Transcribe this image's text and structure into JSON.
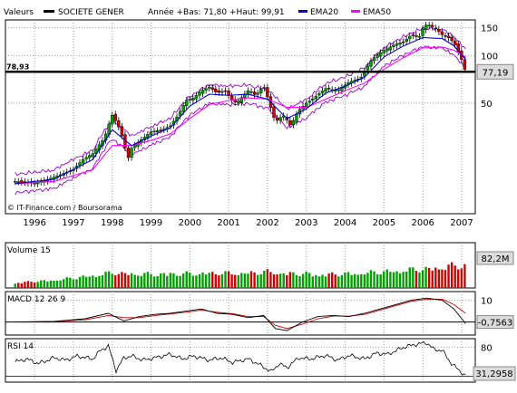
{
  "header": {
    "valeurs_label": "Valeurs",
    "security_name": "SOCIETE GENER",
    "period_info": "Année +Bas: 71,80 +Haut: 99,91",
    "legend": [
      {
        "name": "EMA20",
        "color": "#0000cc"
      },
      {
        "name": "EMA50",
        "color": "#ff00ff"
      }
    ]
  },
  "watermark": "© IT-Finance.com / Boursorama",
  "colors": {
    "background": "#ffffff",
    "grid": "#9e9e9e",
    "up": "#00a000",
    "down": "#d00000",
    "ema20": "#0000cc",
    "ema50": "#ff00ff",
    "bollinger": "#9900cc",
    "badge": "#dcdcdc"
  },
  "chart_data": [
    {
      "type": "candlestick",
      "title": "SOCIETE GENER",
      "x_tick_labels": [
        "1996",
        "1997",
        "1998",
        "1999",
        "2000",
        "2001",
        "2002",
        "2003",
        "2004",
        "2005",
        "2006",
        "2007"
      ],
      "y_ticks": [
        50,
        100,
        150
      ],
      "ylim": [
        10,
        168
      ],
      "xlim": [
        1995.75,
        2007.85
      ],
      "grid": true,
      "scale": "log",
      "legend_placement": "top",
      "support_line": {
        "value": 78.93,
        "label": "78,93"
      },
      "last_value_label": "77,19",
      "series": [
        {
          "name": "close",
          "x": [
            1996.0,
            1996.5,
            1997.0,
            1997.5,
            1997.75,
            1998.0,
            1998.3,
            1998.5,
            1998.7,
            1998.9,
            1999.0,
            1999.3,
            1999.5,
            1999.8,
            2000.0,
            2000.2,
            2000.4,
            2000.6,
            2000.8,
            2001.0,
            2001.2,
            2001.4,
            2001.6,
            2001.7,
            2002.0,
            2002.2,
            2002.4,
            2002.6,
            2002.7,
            2002.9,
            2003.1,
            2003.3,
            2003.5,
            2003.7,
            2004.0,
            2004.3,
            2004.6,
            2004.9,
            2005.0,
            2005.2,
            2005.5,
            2005.8,
            2006.0,
            2006.2,
            2006.4,
            2006.5,
            2006.6,
            2006.8,
            2007.0,
            2007.2,
            2007.35,
            2007.45,
            2007.55,
            2007.6
          ],
          "y": [
            16,
            15.5,
            17,
            19,
            22,
            24,
            30,
            42,
            34,
            22,
            26,
            30,
            33,
            34,
            36,
            42,
            52,
            54,
            60,
            63,
            58,
            60,
            52,
            50,
            60,
            56,
            64,
            45,
            38,
            42,
            36,
            45,
            50,
            54,
            62,
            60,
            68,
            72,
            80,
            95,
            108,
            118,
            122,
            135,
            130,
            148,
            158,
            150,
            135,
            128,
            115,
            100,
            88,
            77.19
          ]
        },
        {
          "name": "EMA20",
          "x": [
            1996.0,
            1997.0,
            1998.0,
            1998.5,
            1999.0,
            1999.5,
            2000.0,
            2000.5,
            2001.0,
            2001.5,
            2002.0,
            2002.5,
            2003.0,
            2003.5,
            2004.0,
            2004.5,
            2005.0,
            2005.5,
            2006.0,
            2006.5,
            2007.0,
            2007.3,
            2007.6
          ],
          "y": [
            15.5,
            16.5,
            22,
            34,
            27,
            31,
            35,
            48,
            57,
            56,
            57,
            53,
            40,
            46,
            58,
            64,
            73,
            98,
            115,
            130,
            128,
            115,
            95
          ]
        },
        {
          "name": "EMA50",
          "x": [
            1996.0,
            1997.0,
            1998.0,
            1998.5,
            1999.0,
            1999.5,
            2000.0,
            2000.5,
            2001.0,
            2001.5,
            2002.0,
            2002.5,
            2003.0,
            2003.5,
            2004.0,
            2004.5,
            2005.0,
            2005.5,
            2006.0,
            2006.5,
            2007.0,
            2007.3,
            2007.6
          ],
          "y": [
            15.5,
            16,
            19,
            27,
            27,
            29,
            32,
            40,
            49,
            52,
            54,
            53,
            47,
            47,
            53,
            60,
            67,
            82,
            97,
            112,
            113,
            108,
            98
          ]
        }
      ]
    },
    {
      "type": "bar",
      "title": "Volume 15",
      "last_value_label": "82,2M",
      "x": [
        1996.0,
        1997.0,
        1997.5,
        1998.0,
        1998.5,
        1999.0,
        1999.5,
        2000.0,
        2000.5,
        2001.0,
        2001.5,
        2002.0,
        2002.5,
        2003.0,
        2003.5,
        2004.0,
        2004.5,
        2005.0,
        2005.5,
        2006.0,
        2006.5,
        2007.0,
        2007.3,
        2007.6
      ],
      "values": [
        20,
        30,
        38,
        48,
        58,
        55,
        52,
        56,
        54,
        58,
        56,
        58,
        62,
        56,
        54,
        52,
        54,
        58,
        62,
        68,
        72,
        80,
        85,
        88
      ]
    },
    {
      "type": "line",
      "title": "MACD 12 26 9",
      "y_ticks": [
        10
      ],
      "last_value_label": "-0,7563",
      "series": [
        {
          "name": "MACD",
          "x": [
            1996.0,
            1997.0,
            1997.8,
            1998.4,
            1998.8,
            1999.2,
            1999.6,
            2000.0,
            2000.4,
            2000.8,
            2001.2,
            2001.6,
            2002.0,
            2002.4,
            2002.7,
            2003.0,
            2003.4,
            2003.8,
            2004.2,
            2004.6,
            2005.0,
            2005.4,
            2005.8,
            2006.2,
            2006.6,
            2007.0,
            2007.3,
            2007.6
          ],
          "y": [
            0,
            0.3,
            1.5,
            4,
            0.5,
            2.5,
            3.5,
            4,
            5,
            6,
            4,
            3.5,
            2,
            3,
            -3,
            -4,
            0,
            2.5,
            3,
            2.5,
            4,
            6,
            8,
            10,
            11,
            10,
            6,
            -0.7563
          ]
        },
        {
          "name": "signal",
          "x": [
            1996.0,
            1997.0,
            1997.8,
            1998.4,
            1998.8,
            1999.2,
            1999.6,
            2000.0,
            2000.4,
            2000.8,
            2001.2,
            2001.6,
            2002.0,
            2002.4,
            2002.7,
            2003.0,
            2003.4,
            2003.8,
            2004.2,
            2004.6,
            2005.0,
            2005.4,
            2005.8,
            2006.2,
            2006.6,
            2007.0,
            2007.3,
            2007.6
          ],
          "y": [
            0,
            0.2,
            1,
            3,
            2,
            2,
            3,
            3.7,
            4.5,
            5.5,
            4.5,
            3.8,
            2.5,
            2.5,
            -1.5,
            -3,
            -1,
            1.5,
            2.7,
            2.7,
            3.5,
            5.5,
            7.5,
            9.5,
            10.5,
            10.5,
            8,
            4
          ]
        }
      ]
    },
    {
      "type": "line",
      "title": "RSI 14",
      "y_ticks": [
        80
      ],
      "last_value_label": "31,2958",
      "series": [
        {
          "name": "RSI",
          "x": [
            1996.0,
            1996.3,
            1996.6,
            1997.0,
            1997.3,
            1997.6,
            1998.0,
            1998.2,
            1998.4,
            1998.6,
            1998.8,
            1999.0,
            1999.3,
            1999.6,
            2000.0,
            2000.3,
            2000.6,
            2001.0,
            2001.3,
            2001.6,
            2002.0,
            2002.3,
            2002.6,
            2002.8,
            2003.0,
            2003.3,
            2003.6,
            2004.0,
            2004.3,
            2004.6,
            2005.0,
            2005.3,
            2005.6,
            2006.0,
            2006.3,
            2006.6,
            2006.8,
            2007.0,
            2007.2,
            2007.4,
            2007.6
          ],
          "y": [
            55,
            60,
            52,
            62,
            58,
            65,
            60,
            75,
            82,
            40,
            62,
            65,
            58,
            62,
            68,
            60,
            65,
            58,
            62,
            54,
            60,
            50,
            38,
            52,
            45,
            62,
            60,
            66,
            58,
            66,
            60,
            70,
            68,
            80,
            85,
            88,
            76,
            75,
            55,
            42,
            31.2958
          ]
        }
      ]
    }
  ]
}
